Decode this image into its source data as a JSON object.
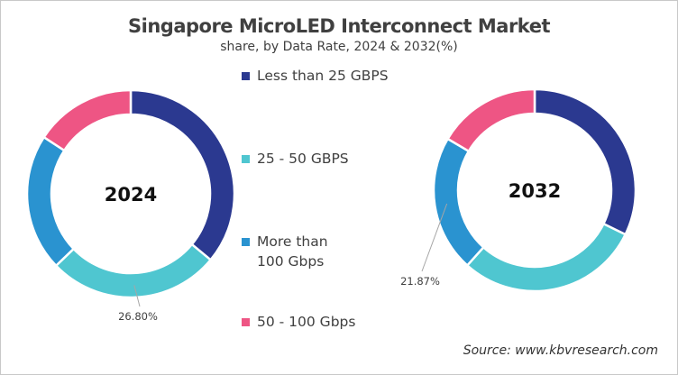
{
  "chart_data": {
    "type": "pie",
    "title": "Singapore MicroLED Interconnect Market",
    "subtitle": "share, by Data Rate, 2024 & 2032(%)",
    "categories": [
      "Less than 25 GBPS",
      "25 - 50 GBPS",
      "More than 100 Gbps",
      "50 - 100 Gbps"
    ],
    "colors": [
      "#2b3990",
      "#4fc6d0",
      "#2a93d0",
      "#ee5584"
    ],
    "legend_position": "center",
    "charts": [
      {
        "label": "2024",
        "values": [
          36.0,
          26.8,
          21.4,
          15.8
        ],
        "data_label": "26.80%",
        "data_label_index": 1
      },
      {
        "label": "2032",
        "values": [
          32.23,
          29.4,
          21.87,
          16.5
        ],
        "data_label": "21.87%",
        "data_label_index": 2
      }
    ],
    "source": "Source: www.kbvresearch.com"
  }
}
